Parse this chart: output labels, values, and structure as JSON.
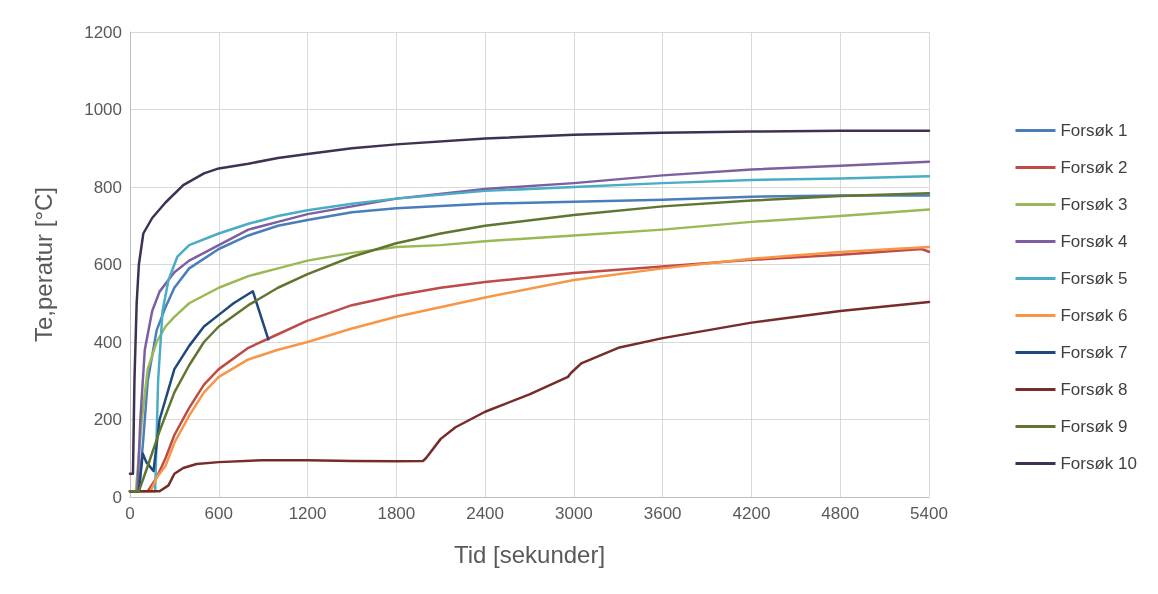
{
  "chart_data": {
    "type": "line",
    "xlabel": "Tid [sekunder]",
    "ylabel": "Te,peratur [°C]",
    "xlim": [
      0,
      5400
    ],
    "xticks": [
      0,
      600,
      1200,
      1800,
      2400,
      3000,
      3600,
      4200,
      4800,
      5400
    ],
    "ylim": [
      0,
      1200
    ],
    "yticks": [
      0,
      200,
      400,
      600,
      800,
      1000,
      1200
    ],
    "grid": true,
    "legend": "right",
    "marker": "none",
    "line_style": "solid",
    "series": [
      {
        "name": "Forsøk 1",
        "color": "#4a7ebb",
        "x": [
          0,
          60,
          90,
          120,
          180,
          240,
          300,
          400,
          600,
          800,
          1000,
          1200,
          1500,
          1800,
          2400,
          3000,
          3600,
          4200,
          4800,
          5400
        ],
        "values": [
          15,
          15,
          150,
          300,
          430,
          490,
          540,
          590,
          640,
          675,
          700,
          715,
          735,
          745,
          757,
          762,
          767,
          775,
          778,
          778
        ]
      },
      {
        "name": "Forsøk 2",
        "color": "#be4b48",
        "x": [
          0,
          120,
          180,
          240,
          300,
          400,
          500,
          600,
          800,
          1000,
          1200,
          1500,
          1800,
          2100,
          2400,
          3000,
          3600,
          4200,
          4800,
          5350,
          5400
        ],
        "values": [
          15,
          15,
          50,
          100,
          160,
          230,
          290,
          330,
          385,
          420,
          455,
          495,
          520,
          540,
          555,
          578,
          595,
          612,
          625,
          640,
          633
        ]
      },
      {
        "name": "Forsøk 3",
        "color": "#98b954",
        "x": [
          0,
          40,
          80,
          120,
          180,
          240,
          300,
          400,
          600,
          800,
          1000,
          1200,
          1500,
          1800,
          2100,
          2400,
          3000,
          3600,
          4200,
          4800,
          5400
        ],
        "values": [
          15,
          15,
          200,
          330,
          400,
          440,
          465,
          500,
          540,
          570,
          590,
          610,
          630,
          645,
          650,
          660,
          675,
          690,
          710,
          725,
          742
        ]
      },
      {
        "name": "Forsøk 4",
        "color": "#7d5fa0",
        "x": [
          0,
          50,
          70,
          100,
          150,
          200,
          300,
          400,
          600,
          800,
          1000,
          1200,
          1500,
          1800,
          2400,
          3000,
          3600,
          4200,
          4800,
          5400
        ],
        "values": [
          15,
          15,
          200,
          380,
          480,
          530,
          580,
          610,
          650,
          690,
          710,
          730,
          750,
          770,
          795,
          810,
          830,
          845,
          855,
          865
        ]
      },
      {
        "name": "Forsøk 5",
        "color": "#4bacc6",
        "x": [
          0,
          170,
          190,
          220,
          260,
          320,
          400,
          600,
          800,
          1000,
          1200,
          1500,
          1800,
          2400,
          3000,
          3600,
          4200,
          4800,
          5400
        ],
        "values": [
          15,
          15,
          300,
          480,
          560,
          620,
          650,
          680,
          705,
          725,
          740,
          757,
          770,
          790,
          800,
          810,
          818,
          822,
          828
        ]
      },
      {
        "name": "Forsøk 6",
        "color": "#f79646",
        "x": [
          0,
          140,
          180,
          240,
          300,
          400,
          500,
          600,
          800,
          1000,
          1200,
          1500,
          1800,
          2400,
          3000,
          3600,
          4200,
          4800,
          5400
        ],
        "values": [
          15,
          15,
          50,
          80,
          140,
          210,
          270,
          310,
          355,
          380,
          400,
          435,
          465,
          515,
          560,
          590,
          615,
          632,
          645
        ]
      },
      {
        "name": "Forsøk 7",
        "color": "#1f497d",
        "x": [
          0,
          60,
          86,
          110,
          159,
          200,
          300,
          400,
          500,
          600,
          700,
          830,
          935
        ],
        "values": [
          15,
          15,
          112,
          90,
          67,
          200,
          330,
          390,
          440,
          470,
          500,
          531,
          407
        ]
      },
      {
        "name": "Forsøk 8",
        "color": "#772c2a",
        "x": [
          0,
          200,
          260,
          300,
          360,
          450,
          600,
          900,
          1200,
          1500,
          1800,
          1980,
          2000,
          2100,
          2200,
          2400,
          2700,
          2960,
          2980,
          3050,
          3300,
          3600,
          4200,
          4800,
          5400
        ],
        "values": [
          15,
          15,
          30,
          60,
          75,
          85,
          90,
          95,
          95,
          93,
          92,
          93,
          100,
          150,
          180,
          220,
          265,
          310,
          320,
          345,
          385,
          410,
          450,
          480,
          503
        ]
      },
      {
        "name": "Forsøk 9",
        "color": "#5f7530",
        "x": [
          0,
          60,
          120,
          200,
          300,
          400,
          500,
          600,
          800,
          1000,
          1200,
          1500,
          1800,
          2100,
          2400,
          3000,
          3600,
          4200,
          4800,
          5400
        ],
        "values": [
          15,
          15,
          80,
          170,
          270,
          340,
          400,
          440,
          495,
          540,
          575,
          620,
          655,
          680,
          700,
          728,
          750,
          765,
          777,
          784
        ]
      },
      {
        "name": "Forsøk 10",
        "color": "#3f3151",
        "x": [
          0,
          20,
          30,
          45,
          60,
          90,
          150,
          240,
          360,
          500,
          600,
          800,
          1000,
          1200,
          1500,
          1800,
          2400,
          3000,
          3600,
          4200,
          4800,
          5400
        ],
        "values": [
          60,
          60,
          300,
          500,
          600,
          680,
          720,
          760,
          805,
          835,
          848,
          860,
          875,
          885,
          900,
          910,
          925,
          935,
          940,
          943,
          945,
          945
        ]
      }
    ]
  }
}
